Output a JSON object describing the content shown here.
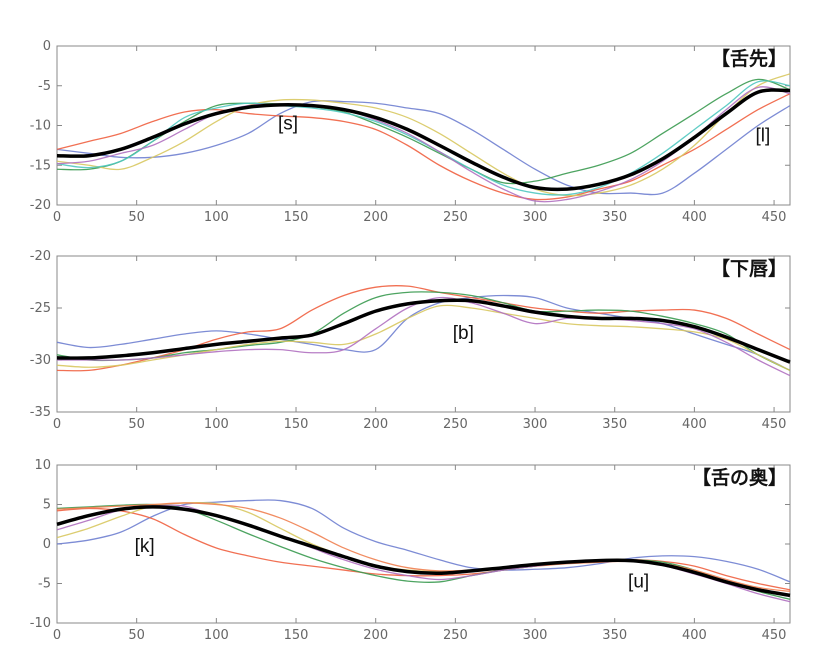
{
  "chart_data": [
    {
      "type": "line",
      "title": "【舌先】",
      "xlim": [
        0,
        460
      ],
      "ylim": [
        -20,
        0
      ],
      "xticks": [
        0,
        50,
        100,
        150,
        200,
        250,
        300,
        350,
        400,
        450
      ],
      "yticks": [
        0,
        -5,
        -10,
        -15,
        -20
      ],
      "x": [
        0,
        20,
        40,
        60,
        80,
        100,
        120,
        140,
        160,
        180,
        200,
        220,
        240,
        260,
        280,
        300,
        320,
        340,
        360,
        380,
        400,
        420,
        440,
        460
      ],
      "annotations": [
        {
          "text": "[s]",
          "x": 145,
          "y": -10.5
        },
        {
          "text": "[l]",
          "x": 443,
          "y": -12
        }
      ],
      "mean": {
        "name": "mean",
        "color": "#000000",
        "values": [
          -13.8,
          -13.8,
          -13,
          -11.5,
          -9.8,
          -8.5,
          -7.7,
          -7.4,
          -7.5,
          -8.0,
          -9.0,
          -10.5,
          -12.5,
          -14.6,
          -16.5,
          -17.8,
          -18.0,
          -17.4,
          -16.2,
          -14.2,
          -11.5,
          -8.5,
          -5.8,
          -5.6
        ]
      },
      "series": [
        {
          "color": "#6f7fd0",
          "values": [
            -13,
            -13.5,
            -14,
            -14,
            -13.5,
            -12.5,
            -11,
            -8.5,
            -7,
            -7,
            -7.2,
            -7.8,
            -8.5,
            -10.5,
            -13,
            -15.5,
            -17.5,
            -18.5,
            -18.5,
            -18.5,
            -16,
            -13,
            -10,
            -7.5
          ]
        },
        {
          "color": "#f06040",
          "values": [
            -13,
            -12,
            -11,
            -9.5,
            -8.3,
            -8,
            -8.5,
            -8.8,
            -9,
            -9.5,
            -10.5,
            -12.5,
            -15,
            -17,
            -18.5,
            -19.3,
            -19,
            -18,
            -17,
            -15,
            -13,
            -10.5,
            -8,
            -6
          ]
        },
        {
          "color": "#3a9a50",
          "values": [
            -15.5,
            -15.5,
            -14.5,
            -12,
            -9.5,
            -7.5,
            -7.2,
            -7.3,
            -7.6,
            -8.3,
            -9.8,
            -11.5,
            -13.5,
            -15.5,
            -17.2,
            -17,
            -16,
            -15,
            -13.5,
            -11,
            -8.5,
            -6,
            -4.2,
            -5.5
          ]
        },
        {
          "color": "#d8c860",
          "values": [
            -14.5,
            -15,
            -15.5,
            -14,
            -12,
            -9.5,
            -7.5,
            -6.8,
            -6.8,
            -7.2,
            -7.8,
            -9,
            -11,
            -13.5,
            -16,
            -18,
            -18.8,
            -18.5,
            -17.5,
            -15.5,
            -12.5,
            -8.5,
            -5,
            -3.5
          ]
        },
        {
          "color": "#50c8c0",
          "values": [
            -14.8,
            -15.3,
            -14.5,
            -12,
            -9,
            -7.8,
            -7.2,
            -7.5,
            -7.8,
            -8.4,
            -9.5,
            -11.2,
            -13.3,
            -15.5,
            -17.5,
            -18.5,
            -18.7,
            -17.8,
            -16,
            -13.5,
            -10.5,
            -7.5,
            -4.5,
            -5
          ]
        },
        {
          "color": "#b070c0",
          "values": [
            -14.8,
            -14.5,
            -13.5,
            -12.5,
            -10.5,
            -8.5,
            -7.5,
            -7.3,
            -7.4,
            -8,
            -9.3,
            -11,
            -13.3,
            -15.8,
            -18,
            -19.5,
            -19.3,
            -18.3,
            -16.8,
            -14.5,
            -11.5,
            -8,
            -5.2,
            -6
          ]
        }
      ]
    },
    {
      "type": "line",
      "title": "【下唇】",
      "xlim": [
        0,
        460
      ],
      "ylim": [
        -35,
        -20
      ],
      "xticks": [
        0,
        50,
        100,
        150,
        200,
        250,
        300,
        350,
        400,
        450
      ],
      "yticks": [
        -20,
        -25,
        -30,
        -35
      ],
      "x": [
        0,
        20,
        40,
        60,
        80,
        100,
        120,
        140,
        160,
        180,
        200,
        220,
        240,
        260,
        280,
        300,
        320,
        340,
        360,
        380,
        400,
        420,
        440,
        460
      ],
      "annotations": [
        {
          "text": "[b]",
          "x": 255,
          "y": -28
        }
      ],
      "mean": {
        "name": "mean",
        "color": "#000000",
        "values": [
          -29.8,
          -29.8,
          -29.6,
          -29.3,
          -28.9,
          -28.5,
          -28.2,
          -27.9,
          -27.6,
          -26.5,
          -25.3,
          -24.6,
          -24.3,
          -24.3,
          -24.8,
          -25.4,
          -25.8,
          -26,
          -26,
          -26.2,
          -26.8,
          -27.8,
          -29,
          -30.2
        ]
      },
      "series": [
        {
          "color": "#6f7fd0",
          "values": [
            -28.3,
            -28.8,
            -28.5,
            -28,
            -27.5,
            -27.2,
            -27.5,
            -28,
            -28.5,
            -29,
            -29,
            -26,
            -24.5,
            -24,
            -23.8,
            -24,
            -25,
            -25.5,
            -26,
            -26.5,
            -27.5,
            -28.5,
            -29.5,
            -31
          ]
        },
        {
          "color": "#f06040",
          "values": [
            -31,
            -31,
            -30.5,
            -29.8,
            -29,
            -28,
            -27.3,
            -27,
            -25.2,
            -23.8,
            -23,
            -22.9,
            -23.5,
            -24,
            -24.5,
            -25,
            -25.3,
            -25.5,
            -25.3,
            -25.2,
            -25.2,
            -26,
            -27.5,
            -29
          ]
        },
        {
          "color": "#3a9a50",
          "values": [
            -29.5,
            -30,
            -30,
            -29.8,
            -29.3,
            -29,
            -28.6,
            -28.3,
            -27.5,
            -25.5,
            -24,
            -23.5,
            -23.5,
            -23.8,
            -24.5,
            -25.3,
            -25.3,
            -25.2,
            -25.3,
            -25.8,
            -26.5,
            -27.5,
            -29.5,
            -31
          ]
        },
        {
          "color": "#d8c860",
          "values": [
            -30.5,
            -30.7,
            -30.5,
            -30,
            -29.5,
            -29,
            -28.5,
            -28.2,
            -28.3,
            -28.5,
            -27.5,
            -26,
            -24.8,
            -25,
            -25.5,
            -26,
            -26.5,
            -26.7,
            -26.8,
            -27,
            -27.3,
            -28,
            -29.5,
            -31
          ]
        },
        {
          "color": "#b070c0",
          "values": [
            -30,
            -30,
            -30,
            -29.8,
            -29.5,
            -29.2,
            -29,
            -29,
            -29.3,
            -29,
            -27,
            -25,
            -24,
            -24.5,
            -25.5,
            -26.5,
            -26,
            -26,
            -26.2,
            -26.5,
            -27,
            -28.3,
            -30,
            -31.5
          ]
        }
      ]
    },
    {
      "type": "line",
      "title": "【舌の奥】",
      "xlim": [
        0,
        460
      ],
      "ylim": [
        -10,
        10
      ],
      "xticks": [
        0,
        50,
        100,
        150,
        200,
        250,
        300,
        350,
        400,
        450
      ],
      "yticks": [
        10,
        5,
        0,
        -5,
        -10
      ],
      "x": [
        0,
        20,
        40,
        60,
        80,
        100,
        120,
        140,
        160,
        180,
        200,
        220,
        240,
        260,
        280,
        300,
        320,
        340,
        360,
        380,
        400,
        420,
        440,
        460
      ],
      "annotations": [
        {
          "text": "[k]",
          "x": 55,
          "y": -1
        },
        {
          "text": "[u]",
          "x": 365,
          "y": -5.5
        }
      ],
      "mean": {
        "name": "mean",
        "color": "#000000",
        "values": [
          2.5,
          3.6,
          4.4,
          4.7,
          4.4,
          3.6,
          2.4,
          1.0,
          -0.3,
          -1.6,
          -2.8,
          -3.5,
          -3.7,
          -3.4,
          -3.0,
          -2.6,
          -2.3,
          -2.1,
          -2.1,
          -2.6,
          -3.6,
          -4.8,
          -5.8,
          -6.5
        ]
      },
      "series": [
        {
          "color": "#6f7fd0",
          "values": [
            0,
            0.5,
            1.5,
            3.5,
            5,
            5.3,
            5.5,
            5.5,
            4.5,
            2,
            0.3,
            -0.8,
            -2,
            -3,
            -3.3,
            -3.2,
            -3,
            -2.5,
            -1.8,
            -1.5,
            -1.6,
            -2.2,
            -3.2,
            -4.8
          ]
        },
        {
          "color": "#f06040",
          "values": [
            4.2,
            4.5,
            4.2,
            3.2,
            1.2,
            -0.5,
            -1.5,
            -2.3,
            -2.8,
            -3.3,
            -3.8,
            -4,
            -4,
            -3.8,
            -3.3,
            -2.8,
            -2.4,
            -2.3,
            -2,
            -2.2,
            -2.8,
            -4,
            -5,
            -5.8
          ]
        },
        {
          "color": "#3a9a50",
          "values": [
            4.5,
            4.7,
            4.9,
            5,
            4.5,
            3,
            1.3,
            -0.3,
            -1.8,
            -3,
            -4,
            -4.7,
            -4.8,
            -4,
            -3.3,
            -2.8,
            -2.3,
            -2,
            -2,
            -2.3,
            -3.3,
            -4.8,
            -6,
            -7
          ]
        },
        {
          "color": "#d8c860",
          "values": [
            0.8,
            2,
            3.5,
            4.8,
            5.2,
            5.1,
            4,
            2,
            0,
            -1.5,
            -2.7,
            -3.3,
            -3.5,
            -3.3,
            -3,
            -2.7,
            -2.3,
            -2.1,
            -2.1,
            -2.6,
            -3.7,
            -4.8,
            -5.8,
            -6.5
          ]
        },
        {
          "color": "#f08050",
          "values": [
            4.4,
            4.6,
            4.8,
            5,
            5.2,
            5,
            4.5,
            3.3,
            1.5,
            -0.5,
            -2,
            -3,
            -3.4,
            -3.3,
            -3,
            -2.8,
            -2.5,
            -2.3,
            -2.2,
            -2.5,
            -3.3,
            -4.5,
            -5.5,
            -6
          ]
        },
        {
          "color": "#b070c0",
          "values": [
            1.8,
            3,
            4.3,
            4.8,
            4.8,
            3.5,
            2.5,
            1,
            -0.5,
            -2,
            -3.2,
            -4,
            -4.5,
            -4,
            -3.3,
            -2.8,
            -2.3,
            -2.1,
            -2.1,
            -2.7,
            -3.8,
            -5,
            -6.3,
            -7.3
          ]
        }
      ]
    }
  ]
}
